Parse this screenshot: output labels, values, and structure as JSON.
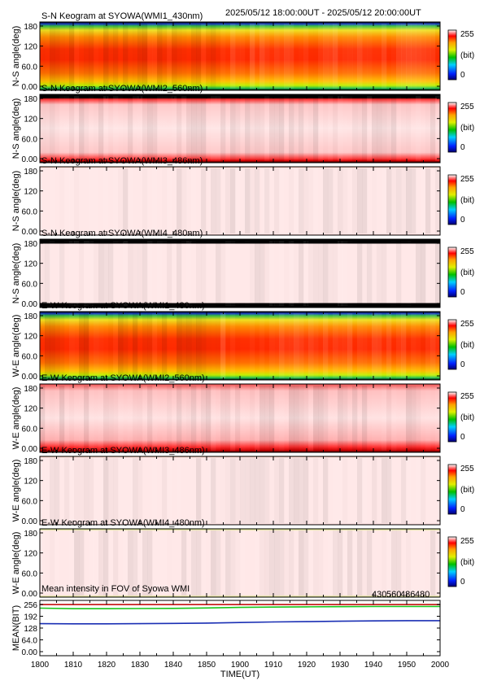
{
  "header": {
    "time_range": "2025/05/12 18:00:00UT - 2025/05/12 20:00:00UT"
  },
  "colorbar": {
    "max_label": "255",
    "min_label": "0",
    "unit_label": "(bit)"
  },
  "chart_data": [
    {
      "type": "heatmap",
      "title": "S-N Keogram at SYOWA(WMI1_430nm)",
      "ylabel": "N-S angle(deg)",
      "yticks": [
        "180",
        "120",
        "60.0",
        "0.00"
      ],
      "ylim": [
        0,
        180
      ],
      "profile": "red"
    },
    {
      "type": "heatmap",
      "title": "S-N Keogram at SYOWA(WMI2_560nm)",
      "ylabel": "N-S angle(deg)",
      "yticks": [
        "180",
        "120",
        "60.0",
        "0.00"
      ],
      "ylim": [
        0,
        180
      ],
      "profile": "pink"
    },
    {
      "type": "heatmap",
      "title": "S-N Keogram at SYOWA(WMI3_486nm)",
      "ylabel": "N-S angle(deg)",
      "yticks": [
        "180",
        "120",
        "60.0",
        "0.00"
      ],
      "ylim": [
        0,
        180
      ],
      "profile": "pale"
    },
    {
      "type": "heatmap",
      "title": "S-N Keogram at SYOWA(WMI4_480nm)",
      "ylabel": "N-S angle(deg)",
      "yticks": [
        "180",
        "120",
        "60.0",
        "0.00"
      ],
      "ylim": [
        0,
        180
      ],
      "profile": "pale_black"
    },
    {
      "type": "heatmap",
      "title": "E-W Keogram at SYOWA(WMI1_430nm)",
      "ylabel": "W-E angle(deg)",
      "yticks": [
        "180",
        "120",
        "60.0",
        "0.00"
      ],
      "ylim": [
        0,
        180
      ],
      "profile": "red"
    },
    {
      "type": "heatmap",
      "title": "E-W Keogram at SYOWA(WMI2_560nm)",
      "ylabel": "W-E angle(deg)",
      "yticks": [
        "180",
        "120",
        "60.0",
        "0.00"
      ],
      "ylim": [
        0,
        180
      ],
      "profile": "pink_red"
    },
    {
      "type": "heatmap",
      "title": "E-W Keogram at SYOWA(WMI3_486nm)",
      "ylabel": "W-E angle(deg)",
      "yticks": [
        "180",
        "120",
        "60.0",
        "0.00"
      ],
      "ylim": [
        0,
        180
      ],
      "profile": "pale"
    },
    {
      "type": "heatmap",
      "title": "E-W Keogram at SYOWA(WMI4_480nm)",
      "ylabel": "W-E angle(deg)",
      "yticks": [
        "180",
        "120",
        "60.0",
        "0.00"
      ],
      "ylim": [
        0,
        180
      ],
      "profile": "pale_green"
    },
    {
      "type": "line",
      "title": "Mean intensity in FOV of Syowa WMI",
      "ylabel": "MEAN(BIT)",
      "xlabel": "TIME(UT)",
      "yticks": [
        "256",
        "192",
        "128",
        "64.0",
        "0.00"
      ],
      "ylim": [
        0,
        256
      ],
      "x": [
        1800,
        1810,
        1820,
        1830,
        1840,
        1850,
        1900,
        1910,
        1920,
        1930,
        1940,
        1950,
        2000
      ],
      "xtick_labels": [
        "1800",
        "1810",
        "1820",
        "1830",
        "1840",
        "1850",
        "1900",
        "1910",
        "1920",
        "1930",
        "1940",
        "1950",
        "2000"
      ],
      "series": [
        {
          "name": "430",
          "color": "#1a2fb4",
          "values": [
            152,
            151,
            151,
            152,
            153,
            155,
            158,
            161,
            163,
            165,
            167,
            168,
            168
          ]
        },
        {
          "name": "560",
          "color": "#19c419",
          "values": [
            236,
            233,
            233,
            234,
            235,
            237,
            240,
            242,
            243,
            244,
            245,
            245,
            245
          ]
        },
        {
          "name": "486",
          "color": "#d01c1c",
          "values": [
            255,
            255,
            255,
            255,
            255,
            255,
            255,
            255,
            255,
            255,
            255,
            255,
            255
          ]
        },
        {
          "name": "480",
          "color": "#000000",
          "values": [
            255,
            255,
            255,
            255,
            255,
            255,
            255,
            255,
            255,
            255,
            255,
            255,
            255
          ]
        }
      ]
    }
  ]
}
